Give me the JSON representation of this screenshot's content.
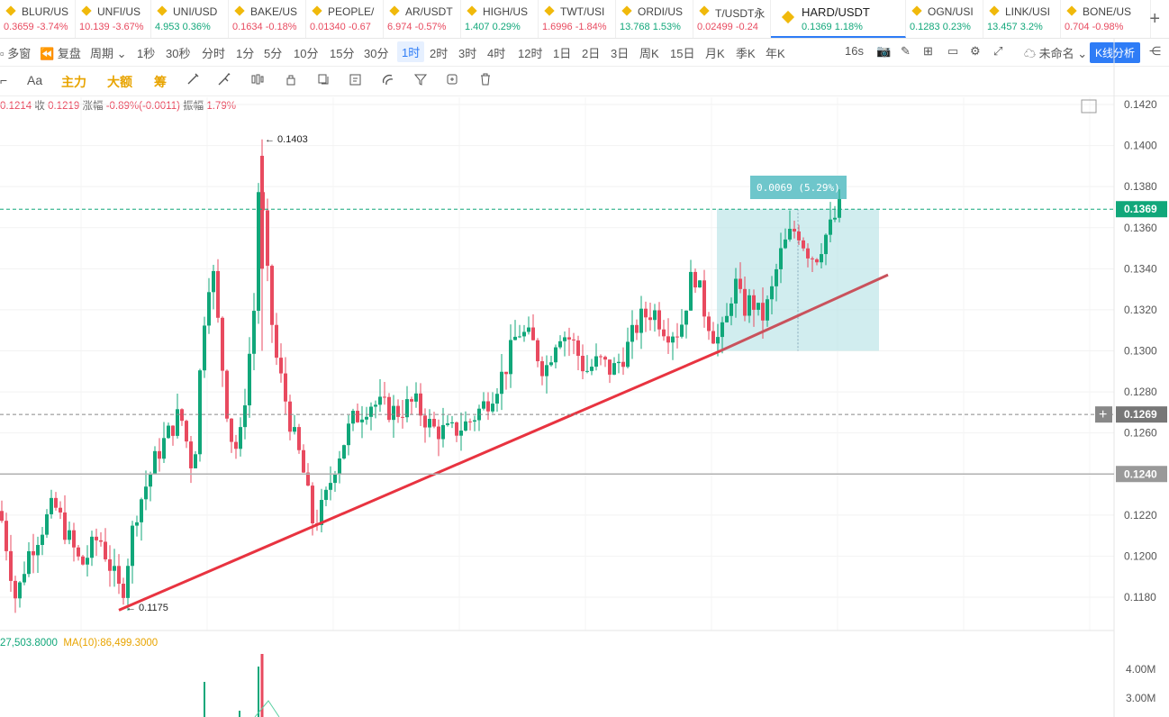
{
  "tabs": [
    {
      "name": "BLUR/US",
      "price": "0.3659",
      "change": "-3.74%",
      "dir": "down"
    },
    {
      "name": "UNFI/US",
      "price": "10.139",
      "change": "-3.67%",
      "dir": "down"
    },
    {
      "name": "UNI/USD",
      "price": "4.953",
      "change": "0.36%",
      "dir": "up"
    },
    {
      "name": "BAKE/US",
      "price": "0.1634",
      "change": "-0.18%",
      "dir": "down"
    },
    {
      "name": "PEOPLE/",
      "price": "0.01340",
      "change": "-0.67",
      "dir": "down"
    },
    {
      "name": "AR/USDT",
      "price": "6.974",
      "change": "-0.57%",
      "dir": "down"
    },
    {
      "name": "HIGH/US",
      "price": "1.407",
      "change": "0.29%",
      "dir": "up"
    },
    {
      "name": "TWT/USI",
      "price": "1.6996",
      "change": "-1.84%",
      "dir": "down"
    },
    {
      "name": "ORDI/US",
      "price": "13.768",
      "change": "1.53%",
      "dir": "up"
    },
    {
      "name": "T/USDT永",
      "price": "0.02499",
      "change": "-0.24",
      "dir": "down"
    },
    {
      "name": "HARD/USDT",
      "price": "0.1369",
      "change": "1.18%",
      "dir": "up",
      "active": true
    },
    {
      "name": "OGN/USI",
      "price": "0.1283",
      "change": "0.23%",
      "dir": "up"
    },
    {
      "name": "LINK/USI",
      "price": "13.457",
      "change": "3.2%",
      "dir": "up"
    },
    {
      "name": "BONE/US",
      "price": "0.704",
      "change": "-0.98%",
      "dir": "down"
    }
  ],
  "toolbar": {
    "multi_window": "多窗",
    "replay": "复盘",
    "period": "周期",
    "intervals": [
      "1秒",
      "30秒",
      "分时",
      "1分",
      "5分",
      "10分",
      "15分",
      "30分",
      "1时",
      "2时",
      "3时",
      "4时",
      "12时",
      "1日",
      "2日",
      "3日",
      "周K",
      "15日",
      "月K",
      "季K",
      "年K"
    ],
    "selected_interval": "1时",
    "countdown": "16s",
    "layout_name": "未命名",
    "kline_analysis": "K线分析"
  },
  "toolbar2": {
    "font": "Aa",
    "main_force": "主力",
    "large_order": "大额",
    "chips": "筹"
  },
  "ohlc_bar": {
    "low": "0.1214",
    "close_label": "收",
    "close": "0.1219",
    "change_label": "涨幅",
    "change": "-0.89%(-0.0011)",
    "amp_label": "振幅",
    "amplitude": "1.79%"
  },
  "volume": {
    "value": "27,503.8000",
    "ma_label": "MA(10):86,499.3000"
  },
  "chart_data": {
    "type": "candlestick",
    "symbol": "HARD/USDT",
    "interval": "1时",
    "ylim": [
      0.1165,
      0.1425
    ],
    "y_ticks": [
      "0.1420",
      "0.1400",
      "0.1380",
      "0.1360",
      "0.1340",
      "0.1320",
      "0.1300",
      "0.1280",
      "0.1260",
      "0.1220",
      "0.1200",
      "0.1180"
    ],
    "last_price": "0.1369",
    "crosshair_price": "0.1269",
    "hline_price": "0.1240",
    "high_marker": "0.1403",
    "low_marker": "0.1175",
    "range_measure": "0.0069 (5.29%)",
    "vol_ticks": [
      "4.00M",
      "3.00M"
    ],
    "colors": {
      "up": "#11a77a",
      "down": "#e84a5f",
      "trendline": "#e83340",
      "range_box": "#b9e3e6"
    }
  }
}
